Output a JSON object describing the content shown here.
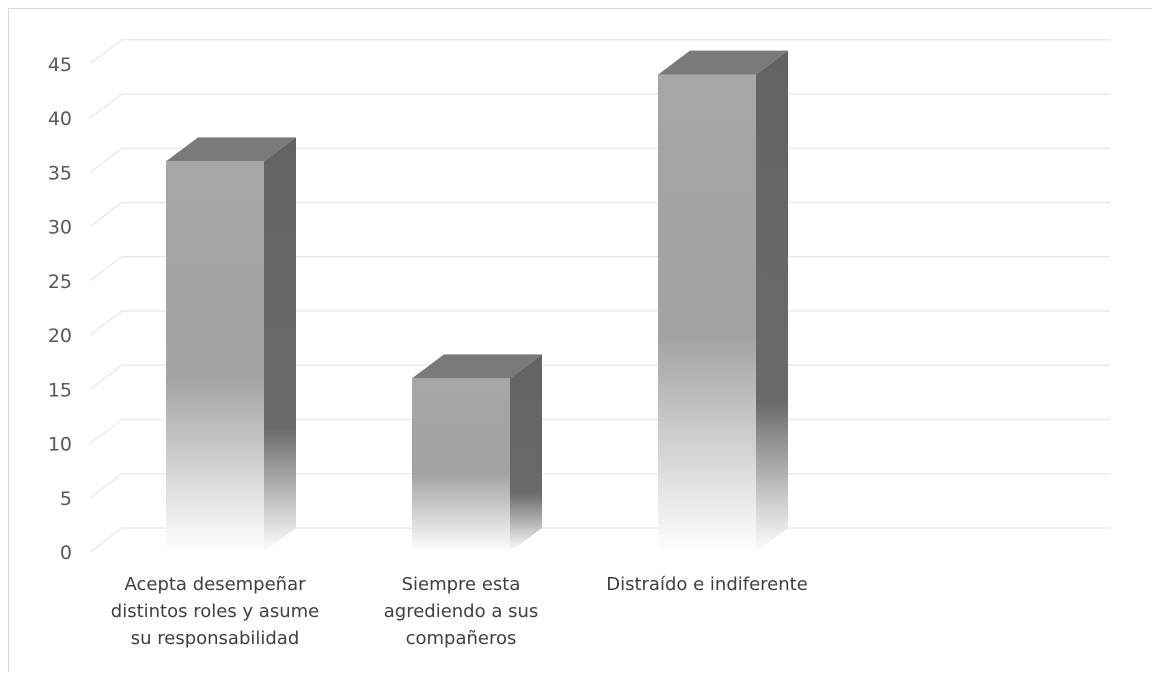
{
  "chart_data": {
    "type": "bar",
    "style": "3d-column",
    "categories": [
      [
        "Acepta desempeñar",
        "distintos roles y asume",
        "su responsabilidad"
      ],
      [
        "Siempre esta",
        "agrediendo a sus",
        "compañeros"
      ],
      [
        "Distraído e indiferente"
      ]
    ],
    "values": [
      36,
      16,
      44
    ],
    "ylim": [
      0,
      45
    ],
    "yticks": [
      0,
      5,
      10,
      15,
      20,
      25,
      30,
      35,
      40,
      45
    ],
    "ytick_labels": [
      "0",
      "5",
      "10",
      "15",
      "20",
      "25",
      "30",
      "35",
      "40",
      "45"
    ],
    "grid": true,
    "legend": "none",
    "colors": {
      "bar_front_top": "#a6a6a6",
      "bar_front_bottom": "#ffffff",
      "bar_side": "#636363",
      "bar_top": "#7a7a7a",
      "grid": "#e8e8e8"
    }
  }
}
